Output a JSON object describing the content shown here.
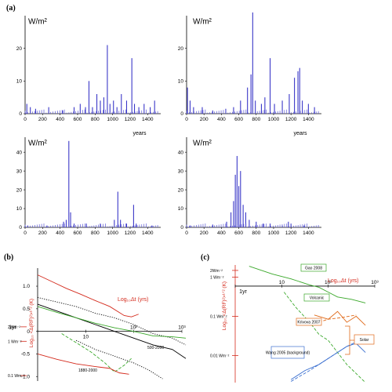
{
  "figure": {
    "panel_a": "(a)",
    "panel_b": "(b)",
    "panel_c": "(c)"
  },
  "chart_data": [
    {
      "type": "bar",
      "panel": "a",
      "subplot": 1,
      "ylabel": "W/m²",
      "xlabel": "",
      "xlim": [
        0,
        1550
      ],
      "ylim": [
        0,
        30
      ],
      "yticks": [
        0,
        10,
        20
      ],
      "xticks": [
        0,
        200,
        400,
        600,
        800,
        1000,
        1200,
        1400
      ],
      "spikes": [
        {
          "x": 20,
          "y": 3
        },
        {
          "x": 60,
          "y": 2
        },
        {
          "x": 120,
          "y": 1.5
        },
        {
          "x": 270,
          "y": 2
        },
        {
          "x": 430,
          "y": 1
        },
        {
          "x": 560,
          "y": 2
        },
        {
          "x": 630,
          "y": 3
        },
        {
          "x": 690,
          "y": 2
        },
        {
          "x": 730,
          "y": 10
        },
        {
          "x": 770,
          "y": 2
        },
        {
          "x": 820,
          "y": 6
        },
        {
          "x": 860,
          "y": 4
        },
        {
          "x": 900,
          "y": 5
        },
        {
          "x": 940,
          "y": 21
        },
        {
          "x": 970,
          "y": 3
        },
        {
          "x": 1010,
          "y": 4
        },
        {
          "x": 1050,
          "y": 2
        },
        {
          "x": 1100,
          "y": 6
        },
        {
          "x": 1160,
          "y": 4
        },
        {
          "x": 1220,
          "y": 17
        },
        {
          "x": 1250,
          "y": 3
        },
        {
          "x": 1300,
          "y": 2
        },
        {
          "x": 1360,
          "y": 3
        },
        {
          "x": 1430,
          "y": 2
        },
        {
          "x": 1480,
          "y": 4
        }
      ]
    },
    {
      "type": "bar",
      "panel": "a",
      "subplot": 2,
      "ylabel": "W/m²",
      "xlabel": "",
      "xlim": [
        0,
        1550
      ],
      "ylim": [
        0,
        30
      ],
      "yticks": [
        0,
        10,
        20
      ],
      "xticks": [
        0,
        200,
        400,
        600,
        800,
        1000,
        1200,
        1400
      ],
      "spikes": [
        {
          "x": 10,
          "y": 8
        },
        {
          "x": 40,
          "y": 4
        },
        {
          "x": 80,
          "y": 2
        },
        {
          "x": 180,
          "y": 2
        },
        {
          "x": 300,
          "y": 1
        },
        {
          "x": 450,
          "y": 1.5
        },
        {
          "x": 540,
          "y": 2
        },
        {
          "x": 620,
          "y": 4
        },
        {
          "x": 700,
          "y": 8
        },
        {
          "x": 740,
          "y": 12
        },
        {
          "x": 760,
          "y": 31
        },
        {
          "x": 790,
          "y": 4
        },
        {
          "x": 860,
          "y": 3
        },
        {
          "x": 900,
          "y": 5
        },
        {
          "x": 960,
          "y": 17
        },
        {
          "x": 1010,
          "y": 3
        },
        {
          "x": 1100,
          "y": 4
        },
        {
          "x": 1180,
          "y": 6
        },
        {
          "x": 1240,
          "y": 11
        },
        {
          "x": 1280,
          "y": 13
        },
        {
          "x": 1300,
          "y": 14
        },
        {
          "x": 1330,
          "y": 4
        },
        {
          "x": 1400,
          "y": 3
        },
        {
          "x": 1470,
          "y": 2
        }
      ]
    },
    {
      "type": "bar",
      "panel": "a",
      "subplot": 3,
      "ylabel": "W/m²",
      "xlabel": "years",
      "xlim": [
        0,
        1550
      ],
      "ylim": [
        0,
        48
      ],
      "yticks": [
        0,
        10,
        20,
        30,
        40
      ],
      "xticks": [
        0,
        200,
        400,
        600,
        800,
        1000,
        1200,
        1400
      ],
      "spikes": [
        {
          "x": 30,
          "y": 1
        },
        {
          "x": 250,
          "y": 1
        },
        {
          "x": 440,
          "y": 3
        },
        {
          "x": 470,
          "y": 4
        },
        {
          "x": 500,
          "y": 46
        },
        {
          "x": 520,
          "y": 8
        },
        {
          "x": 560,
          "y": 2
        },
        {
          "x": 700,
          "y": 2
        },
        {
          "x": 860,
          "y": 2
        },
        {
          "x": 1020,
          "y": 4
        },
        {
          "x": 1060,
          "y": 19
        },
        {
          "x": 1090,
          "y": 4
        },
        {
          "x": 1160,
          "y": 2
        },
        {
          "x": 1240,
          "y": 12
        },
        {
          "x": 1270,
          "y": 2
        },
        {
          "x": 1450,
          "y": 1
        }
      ]
    },
    {
      "type": "bar",
      "panel": "a",
      "subplot": 4,
      "ylabel": "W/m²",
      "xlabel": "years",
      "xlim": [
        0,
        1550
      ],
      "ylim": [
        0,
        48
      ],
      "yticks": [
        0,
        10,
        20,
        30,
        40
      ],
      "xticks": [
        0,
        200,
        400,
        600,
        800,
        1000,
        1200,
        1400
      ],
      "spikes": [
        {
          "x": 40,
          "y": 1
        },
        {
          "x": 300,
          "y": 1.5
        },
        {
          "x": 460,
          "y": 3
        },
        {
          "x": 510,
          "y": 8
        },
        {
          "x": 540,
          "y": 14
        },
        {
          "x": 560,
          "y": 28
        },
        {
          "x": 580,
          "y": 38
        },
        {
          "x": 600,
          "y": 22
        },
        {
          "x": 620,
          "y": 30
        },
        {
          "x": 650,
          "y": 12
        },
        {
          "x": 680,
          "y": 8
        },
        {
          "x": 720,
          "y": 4
        },
        {
          "x": 800,
          "y": 3
        },
        {
          "x": 880,
          "y": 2
        },
        {
          "x": 960,
          "y": 2
        },
        {
          "x": 1100,
          "y": 1
        },
        {
          "x": 1170,
          "y": 3
        },
        {
          "x": 1200,
          "y": 2
        },
        {
          "x": 1350,
          "y": 1
        }
      ]
    },
    {
      "type": "line",
      "panel": "b",
      "ylabel": "Log₁₀ <Δ(RF)²>¹ᐟ² (K)",
      "xlabel": "Log₁₀Δt (yrs)",
      "xlim": [
        0,
        3
      ],
      "ylim": [
        -1.1,
        1.4
      ],
      "xtick_labels": [
        "1yr",
        "10",
        "10²",
        "10³"
      ],
      "ytick_labels": [
        "1.0",
        "0.5",
        "0",
        "-0.5",
        "-1.0"
      ],
      "ytick_values": [
        1.0,
        0.5,
        0,
        -0.5,
        -1.0
      ],
      "red_ticks": [
        {
          "label": "2Wm⁻²",
          "y": 0.1
        },
        {
          "label": "1 Wm⁻²",
          "y": -0.22
        },
        {
          "label": "0.1 Wm⁻²",
          "y": -0.98
        }
      ],
      "annotations": [
        "500-2000",
        "1880-2000"
      ],
      "series": [
        {
          "color": "#d42a1c",
          "style": "solid",
          "x": [
            0,
            0.3,
            0.6,
            0.9,
            1.2,
            1.5,
            1.8,
            1.95,
            2.1
          ],
          "y": [
            1.25,
            1.1,
            0.95,
            0.82,
            0.68,
            0.55,
            0.35,
            0.32,
            0.38
          ]
        },
        {
          "color": "#000000",
          "style": "dotted",
          "x": [
            0,
            0.4,
            0.8,
            1.2,
            1.6,
            2.0,
            2.4,
            2.8,
            3.2
          ],
          "y": [
            0.75,
            0.65,
            0.55,
            0.4,
            0.3,
            0.15,
            -0.05,
            -0.15,
            -0.3
          ]
        },
        {
          "color": "#000000",
          "style": "solid",
          "x": [
            0,
            0.4,
            0.8,
            1.2,
            1.6,
            2.0,
            2.4,
            2.8,
            3.2
          ],
          "y": [
            0.6,
            0.45,
            0.3,
            0.15,
            0.0,
            -0.15,
            -0.3,
            -0.4,
            -0.6
          ]
        },
        {
          "color": "#3aa82a",
          "style": "solid",
          "x": [
            0,
            0.4,
            0.8,
            1.2,
            1.6,
            2.0,
            2.4,
            2.8,
            3.2
          ],
          "y": [
            0.55,
            0.42,
            0.3,
            0.18,
            0.08,
            0.0,
            -0.1,
            -0.12,
            -0.15
          ]
        },
        {
          "color": "#3aa82a",
          "style": "dashed",
          "x": [
            0.5,
            0.8,
            1.1,
            1.4,
            1.6,
            1.8,
            1.95
          ],
          "y": [
            -0.05,
            -0.25,
            -0.45,
            -0.7,
            -0.9,
            -0.75,
            -0.6
          ]
        },
        {
          "color": "#000000",
          "style": "dotted",
          "x": [
            0.8,
            1.2,
            1.6,
            2.0,
            2.3,
            2.6
          ],
          "y": [
            -0.2,
            -0.4,
            -0.55,
            -0.7,
            -0.85,
            -1.05
          ]
        },
        {
          "color": "#d42a1c",
          "style": "solid",
          "x": [
            0,
            0.4,
            0.8,
            1.2,
            1.5,
            1.7,
            1.9
          ],
          "y": [
            -0.5,
            -0.62,
            -0.72,
            -0.78,
            -0.82,
            -0.92,
            -0.95
          ]
        }
      ]
    },
    {
      "type": "line",
      "panel": "c",
      "ylabel": "Log₁₀ <Δ(RF)²>¹ᐟ² (K)",
      "xlabel": "Log₁₀Δt (yrs)",
      "xlim": [
        0,
        3
      ],
      "ylim": [
        -1.6,
        0.35
      ],
      "xtick_labels": [
        "1yr",
        "10",
        "10²",
        "10³"
      ],
      "red_ticks": [
        {
          "label": "2Wm⁻²",
          "y": 0.26
        },
        {
          "label": "1 Wm⁻²",
          "y": 0.15
        },
        {
          "label": "0.1 Wm⁻²",
          "y": -0.5
        },
        {
          "label": "0.01 Wm⁻²",
          "y": -1.15
        }
      ],
      "callouts": [
        {
          "text": "Gao 2008",
          "color": "#3aa82a"
        },
        {
          "text": "Volcanic",
          "color": "#3aa82a"
        },
        {
          "text": "Krivova 2007",
          "color": "#e06a1a"
        },
        {
          "text": "Solar",
          "color": "#e06a1a"
        },
        {
          "text": "Wang 2005 (background)",
          "color": "#3a6fd0"
        }
      ],
      "series": [
        {
          "color": "#3aa82a",
          "style": "solid",
          "x": [
            0.3,
            0.8,
            1.2,
            1.6,
            1.8,
            2.0,
            2.2,
            2.5,
            2.8
          ],
          "y": [
            0.33,
            0.2,
            0.12,
            0.02,
            -0.02,
            -0.1,
            -0.18,
            -0.22,
            -0.28
          ]
        },
        {
          "color": "#3aa82a",
          "style": "dashed",
          "x": [
            1.05,
            1.3,
            1.6,
            1.8,
            2.0,
            2.4,
            2.8
          ],
          "y": [
            -0.1,
            -0.35,
            -0.6,
            -0.8,
            -0.9,
            -1.3,
            -1.6
          ]
        },
        {
          "color": "#e06a1a",
          "style": "solid",
          "x": [
            1.7,
            2.0,
            2.2,
            2.4,
            2.6,
            2.8
          ],
          "y": [
            -0.48,
            -0.55,
            -0.42,
            -0.6,
            -0.5,
            -0.65
          ]
        },
        {
          "color": "#e06a1a",
          "style": "dashed",
          "x": [
            1.7,
            2.0,
            2.3,
            2.6
          ],
          "y": [
            -0.62,
            -0.55,
            -0.52,
            -0.48
          ]
        },
        {
          "color": "#3a6fd0",
          "style": "solid",
          "x": [
            1.2,
            1.5,
            1.8,
            2.1,
            2.4,
            2.6,
            2.8
          ],
          "y": [
            -1.55,
            -1.4,
            -1.3,
            -1.15,
            -1.0,
            -0.95,
            -1.1
          ]
        },
        {
          "color": "#3a6fd0",
          "style": "dashed",
          "x": [
            1.2,
            1.6,
            2.0,
            2.4,
            2.8
          ],
          "y": [
            -1.58,
            -1.4,
            -1.2,
            -1.0,
            -0.85
          ]
        }
      ]
    }
  ]
}
